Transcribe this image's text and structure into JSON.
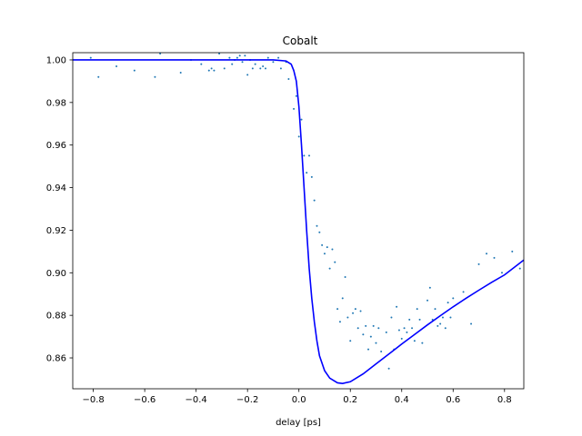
{
  "chart_data": {
    "type": "scatter",
    "title": "Cobalt",
    "xlabel": "delay [ps]",
    "ylabel": "",
    "xlim": [
      -0.88,
      0.875
    ],
    "ylim": [
      0.8455,
      1.0034
    ],
    "xticks": [
      -0.8,
      -0.6,
      -0.4,
      -0.2,
      0.0,
      0.2,
      0.4,
      0.6,
      0.8
    ],
    "xtick_labels": [
      "−0.8",
      "−0.6",
      "−0.4",
      "−0.2",
      "0.0",
      "0.2",
      "0.4",
      "0.6",
      "0.8"
    ],
    "yticks": [
      0.86,
      0.88,
      0.9,
      0.92,
      0.94,
      0.96,
      0.98,
      1.0
    ],
    "ytick_labels": [
      "0.86",
      "0.88",
      "0.90",
      "0.92",
      "0.94",
      "0.96",
      "0.98",
      "1.00"
    ],
    "grid": false,
    "legend": "none",
    "colors": {
      "points": "#1f77b4",
      "fit": "#0000ff"
    },
    "series": [
      {
        "kind": "scatter",
        "points": [
          [
            -0.81,
            1.001
          ],
          [
            -0.78,
            0.992
          ],
          [
            -0.71,
            0.997
          ],
          [
            -0.64,
            0.995
          ],
          [
            -0.56,
            0.992
          ],
          [
            -0.54,
            1.003
          ],
          [
            -0.46,
            0.994
          ],
          [
            -0.42,
            1.0
          ],
          [
            -0.38,
            0.998
          ],
          [
            -0.35,
            0.995
          ],
          [
            -0.34,
            0.996
          ],
          [
            -0.33,
            0.995
          ],
          [
            -0.31,
            1.003
          ],
          [
            -0.29,
            0.996
          ],
          [
            -0.27,
            1.001
          ],
          [
            -0.26,
            0.998
          ],
          [
            -0.25,
            1.0
          ],
          [
            -0.24,
            1.001
          ],
          [
            -0.23,
            1.002
          ],
          [
            -0.22,
            0.999
          ],
          [
            -0.21,
            1.002
          ],
          [
            -0.2,
            0.993
          ],
          [
            -0.19,
            1.0
          ],
          [
            -0.18,
            0.996
          ],
          [
            -0.17,
            0.998
          ],
          [
            -0.15,
            0.996
          ],
          [
            -0.14,
            0.997
          ],
          [
            -0.13,
            0.996
          ],
          [
            -0.12,
            1.001
          ],
          [
            -0.1,
            0.999
          ],
          [
            -0.08,
            1.001
          ],
          [
            -0.07,
            0.996
          ],
          [
            -0.05,
            0.999
          ],
          [
            -0.04,
            0.991
          ],
          [
            -0.02,
            0.977
          ],
          [
            -0.01,
            0.983
          ],
          [
            0.0,
            0.964
          ],
          [
            0.01,
            0.972
          ],
          [
            0.02,
            0.955
          ],
          [
            0.03,
            0.947
          ],
          [
            0.04,
            0.955
          ],
          [
            0.05,
            0.945
          ],
          [
            0.06,
            0.934
          ],
          [
            0.07,
            0.922
          ],
          [
            0.08,
            0.919
          ],
          [
            0.09,
            0.913
          ],
          [
            0.1,
            0.909
          ],
          [
            0.11,
            0.912
          ],
          [
            0.12,
            0.902
          ],
          [
            0.13,
            0.911
          ],
          [
            0.14,
            0.905
          ],
          [
            0.15,
            0.883
          ],
          [
            0.16,
            0.877
          ],
          [
            0.17,
            0.888
          ],
          [
            0.18,
            0.898
          ],
          [
            0.19,
            0.879
          ],
          [
            0.2,
            0.868
          ],
          [
            0.21,
            0.881
          ],
          [
            0.22,
            0.883
          ],
          [
            0.23,
            0.874
          ],
          [
            0.24,
            0.882
          ],
          [
            0.25,
            0.871
          ],
          [
            0.26,
            0.875
          ],
          [
            0.27,
            0.864
          ],
          [
            0.28,
            0.87
          ],
          [
            0.29,
            0.875
          ],
          [
            0.3,
            0.867
          ],
          [
            0.31,
            0.874
          ],
          [
            0.32,
            0.863
          ],
          [
            0.34,
            0.872
          ],
          [
            0.35,
            0.855
          ],
          [
            0.36,
            0.879
          ],
          [
            0.37,
            0.864
          ],
          [
            0.38,
            0.884
          ],
          [
            0.39,
            0.873
          ],
          [
            0.4,
            0.869
          ],
          [
            0.41,
            0.874
          ],
          [
            0.42,
            0.872
          ],
          [
            0.43,
            0.878
          ],
          [
            0.44,
            0.874
          ],
          [
            0.45,
            0.868
          ],
          [
            0.46,
            0.883
          ],
          [
            0.47,
            0.878
          ],
          [
            0.48,
            0.867
          ],
          [
            0.5,
            0.887
          ],
          [
            0.51,
            0.893
          ],
          [
            0.52,
            0.878
          ],
          [
            0.53,
            0.883
          ],
          [
            0.54,
            0.875
          ],
          [
            0.55,
            0.876
          ],
          [
            0.56,
            0.879
          ],
          [
            0.57,
            0.874
          ],
          [
            0.58,
            0.886
          ],
          [
            0.59,
            0.879
          ],
          [
            0.6,
            0.888
          ],
          [
            0.64,
            0.891
          ],
          [
            0.67,
            0.876
          ],
          [
            0.7,
            0.904
          ],
          [
            0.73,
            0.909
          ],
          [
            0.76,
            0.907
          ],
          [
            0.79,
            0.9
          ],
          [
            0.83,
            0.91
          ],
          [
            0.86,
            0.902
          ]
        ]
      },
      {
        "kind": "line",
        "points": [
          [
            -0.88,
            1.0
          ],
          [
            -0.3,
            1.0
          ],
          [
            -0.1,
            1.0
          ],
          [
            -0.05,
            0.9995
          ],
          [
            -0.03,
            0.998
          ],
          [
            -0.02,
            0.995
          ],
          [
            -0.01,
            0.99
          ],
          [
            0.0,
            0.978
          ],
          [
            0.01,
            0.96
          ],
          [
            0.02,
            0.94
          ],
          [
            0.03,
            0.92
          ],
          [
            0.04,
            0.902
          ],
          [
            0.05,
            0.888
          ],
          [
            0.06,
            0.877
          ],
          [
            0.07,
            0.868
          ],
          [
            0.08,
            0.861
          ],
          [
            0.1,
            0.854
          ],
          [
            0.12,
            0.8505
          ],
          [
            0.15,
            0.8483
          ],
          [
            0.17,
            0.848
          ],
          [
            0.2,
            0.8488
          ],
          [
            0.25,
            0.8525
          ],
          [
            0.3,
            0.8572
          ],
          [
            0.35,
            0.8618
          ],
          [
            0.4,
            0.8665
          ],
          [
            0.45,
            0.871
          ],
          [
            0.5,
            0.8755
          ],
          [
            0.55,
            0.8798
          ],
          [
            0.6,
            0.884
          ],
          [
            0.65,
            0.888
          ],
          [
            0.7,
            0.8918
          ],
          [
            0.75,
            0.8955
          ],
          [
            0.8,
            0.899
          ],
          [
            0.875,
            0.906
          ]
        ]
      }
    ]
  }
}
